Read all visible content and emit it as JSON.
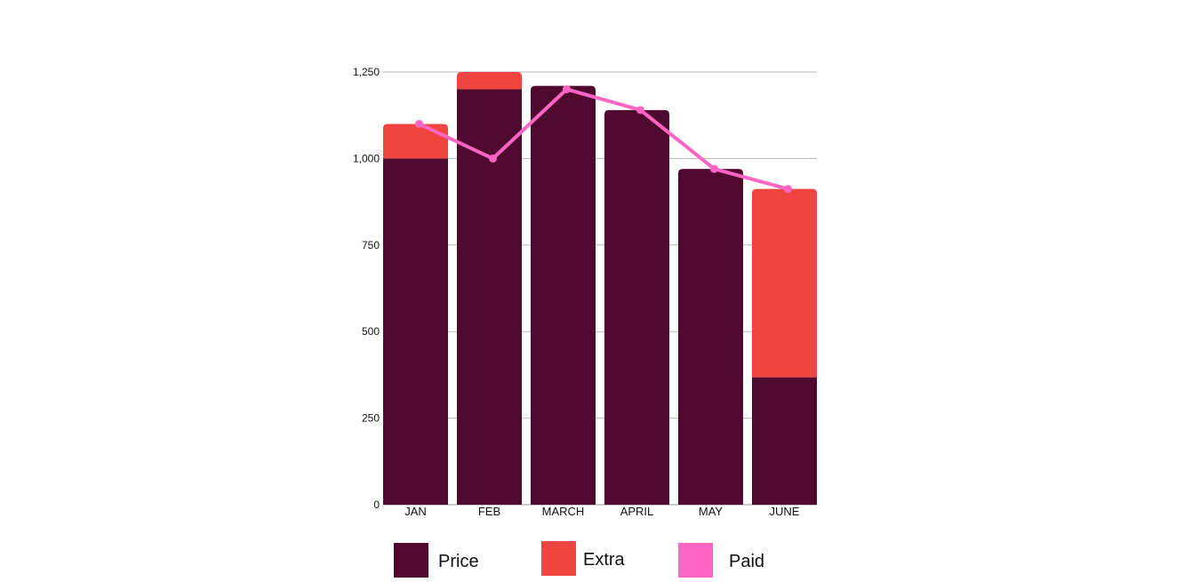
{
  "chart_data": {
    "type": "bar",
    "stacked": true,
    "categories": [
      "JAN",
      "FEB",
      "MARCH",
      "APRIL",
      "MAY",
      "JUNE"
    ],
    "series": [
      {
        "name": "Price",
        "type": "bar",
        "values": [
          1000,
          1200,
          1210,
          1140,
          970,
          368
        ],
        "color": "#500a30"
      },
      {
        "name": "Extra",
        "type": "bar",
        "values": [
          100,
          50,
          0,
          0,
          0,
          544
        ],
        "color": "#f04440"
      },
      {
        "name": "Paid",
        "type": "line",
        "values": [
          1100,
          1000,
          1200,
          1140,
          970,
          912
        ],
        "color": "#ff66c4"
      }
    ],
    "ylim": [
      0,
      1250
    ],
    "yticks": [
      0,
      250,
      500,
      750,
      1000,
      1250
    ],
    "ytick_labels": [
      "0",
      "250",
      "500",
      "750",
      "1,000",
      "1,250"
    ],
    "grid": true,
    "legend_position": "bottom"
  }
}
